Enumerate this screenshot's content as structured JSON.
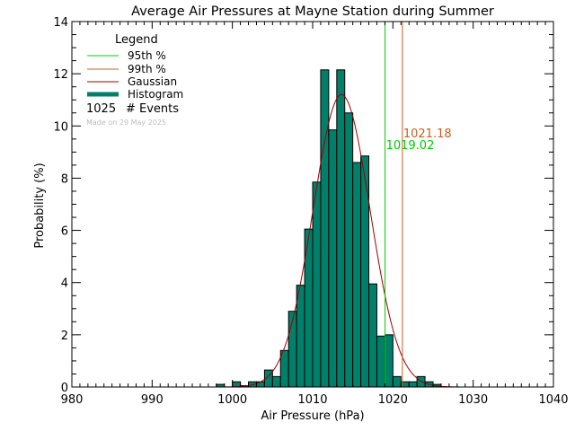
{
  "chart_data": {
    "type": "bar",
    "title": "Average Air Pressures at Mayne Station during Summer",
    "xlabel": "Air Pressure (hPa)",
    "ylabel": "Probability (%)",
    "xlim": [
      980,
      1040
    ],
    "ylim": [
      0,
      14
    ],
    "x_ticks": [
      980,
      990,
      1000,
      1010,
      1020,
      1030,
      1040
    ],
    "y_ticks": [
      0,
      2,
      4,
      6,
      8,
      10,
      12,
      14
    ],
    "bin_width": 1,
    "histogram": {
      "bin_starts": [
        998,
        999,
        1000,
        1001,
        1002,
        1003,
        1004,
        1005,
        1006,
        1007,
        1008,
        1009,
        1010,
        1011,
        1012,
        1013,
        1014,
        1015,
        1016,
        1017,
        1018,
        1019,
        1020,
        1021,
        1022,
        1023,
        1024,
        1025
      ],
      "values": [
        0.1,
        0.0,
        0.2,
        0.05,
        0.2,
        0.2,
        0.65,
        0.4,
        1.4,
        2.9,
        3.9,
        6.05,
        7.85,
        12.15,
        9.85,
        12.15,
        10.5,
        8.6,
        8.85,
        3.95,
        1.95,
        2.0,
        0.4,
        0.2,
        0.2,
        0.4,
        0.2,
        0.1
      ]
    },
    "gaussian": {
      "mean": 1013.6,
      "stddev": 3.55,
      "peak": 11.2
    },
    "percentiles": [
      {
        "label": "95th %",
        "value": 1019.02,
        "value_label": "1019.02",
        "color": "#00cc00"
      },
      {
        "label": "99th %",
        "value": 1021.18,
        "value_label": "1021.18",
        "color": "#c06020"
      }
    ],
    "legend": {
      "title": "Legend",
      "placement": "top-left",
      "entries": [
        {
          "label": "95th %",
          "color": "#00cc00",
          "style": "line"
        },
        {
          "label": "99th %",
          "color": "#c06020",
          "style": "line"
        },
        {
          "label": "Gaussian",
          "color": "#990000",
          "style": "line"
        },
        {
          "label": "Histogram",
          "color": "#00806a",
          "style": "thick"
        }
      ],
      "events_count": "1025",
      "events_label": "# Events",
      "made_on": "Made on 29 May 2025"
    },
    "colors": {
      "histogram_fill": "#00806a",
      "histogram_edge": "#000000",
      "gaussian": "#990000",
      "axis": "#000000",
      "made_on_text": "#bbbbbb"
    }
  }
}
